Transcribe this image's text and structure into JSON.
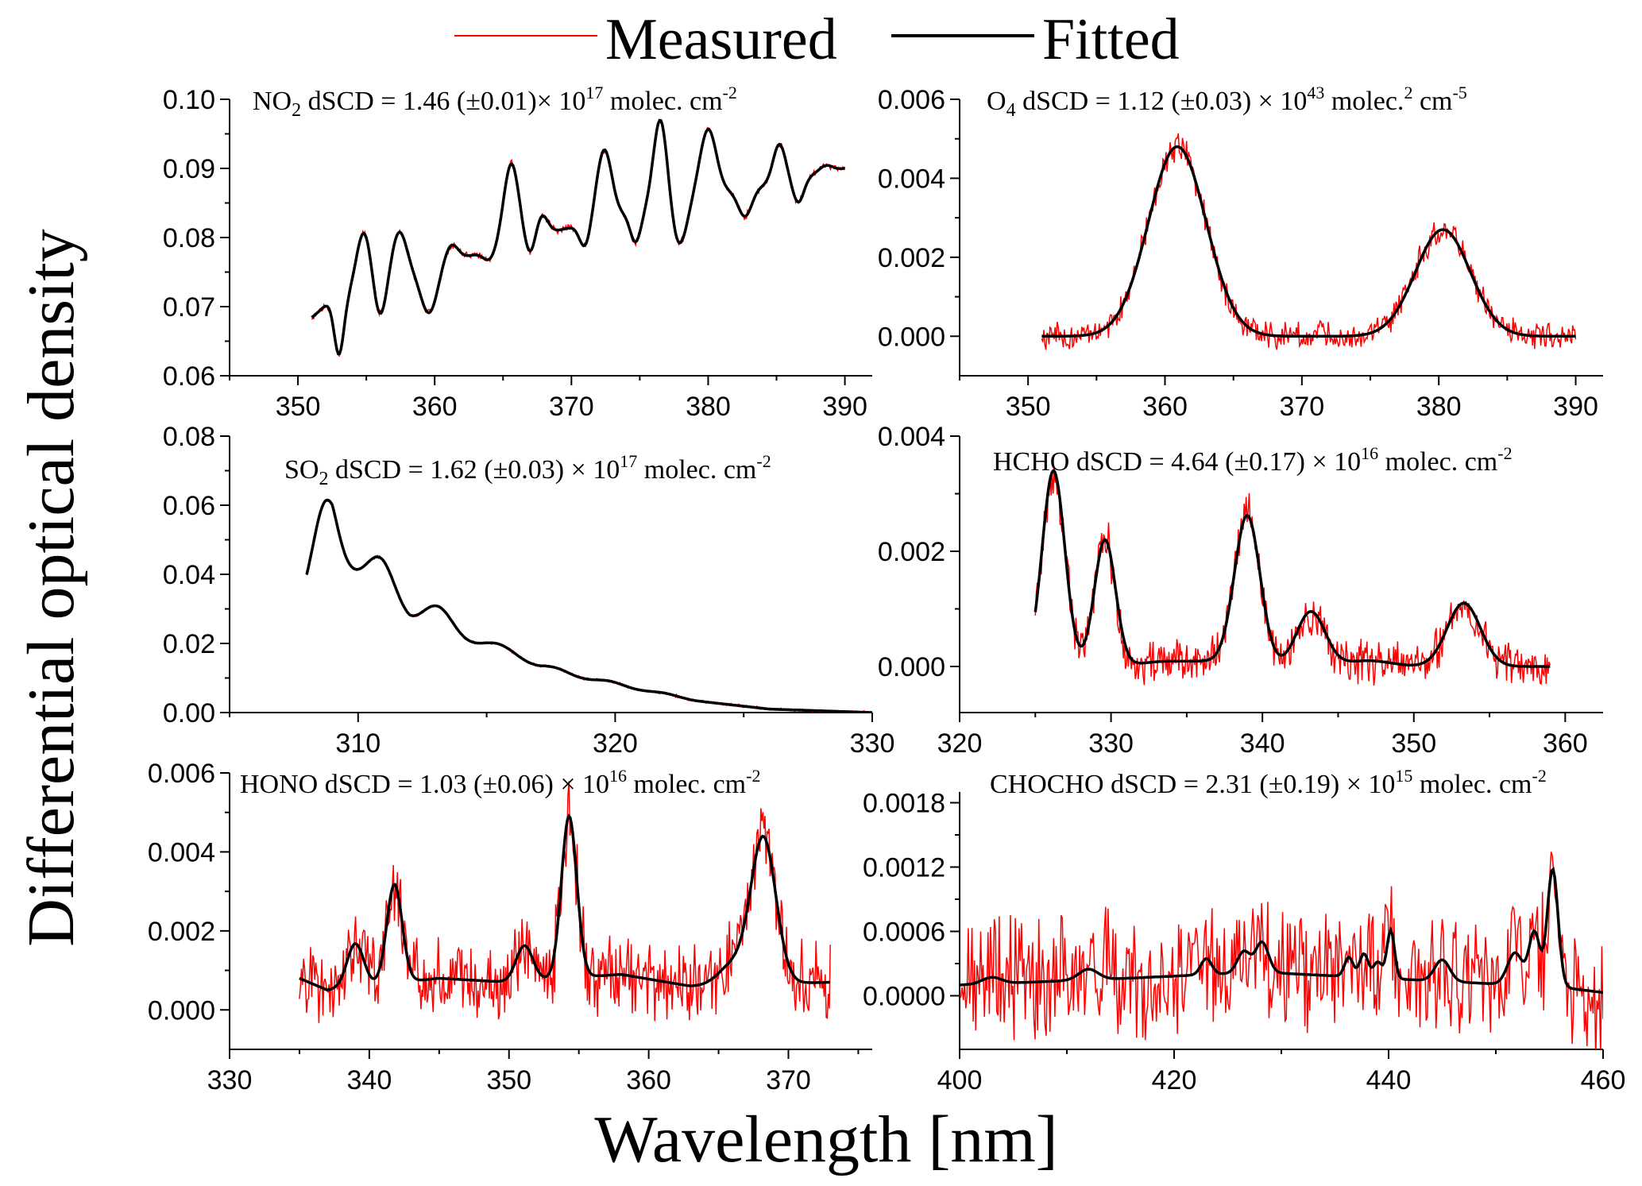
{
  "figure": {
    "legend": {
      "measured_label": "Measured",
      "fitted_label": "Fitted"
    },
    "ylabel": "Differential optical density",
    "xlabel": "Wavelength [nm]",
    "colors": {
      "measured": "#ff0000",
      "fitted": "#000000",
      "axis": "#000000"
    }
  },
  "chart_data": [
    {
      "id": "no2",
      "type": "line",
      "title": {
        "species": "NO",
        "sub": "2",
        "text": " dSCD = 1.46 (±0.01)× 10",
        "exp": "17",
        "tail": " molec. cm",
        "tail_sup": "-2"
      },
      "xlim": [
        345,
        392
      ],
      "ylim": [
        0.06,
        0.1
      ],
      "xticks": [
        350,
        360,
        370,
        380,
        390
      ],
      "yticks": [
        0.06,
        0.07,
        0.08,
        0.09,
        0.1
      ],
      "ytick_labels": [
        "0.06",
        "0.07",
        "0.08",
        "0.09",
        "0.10"
      ],
      "x_range": [
        351,
        390
      ],
      "baseline": [
        [
          351,
          0.0683
        ],
        [
          356,
          0.0735
        ],
        [
          362,
          0.077
        ],
        [
          367,
          0.08
        ],
        [
          372,
          0.0825
        ],
        [
          378,
          0.0855
        ],
        [
          384,
          0.0875
        ],
        [
          390,
          0.09
        ]
      ],
      "peaks": [
        [
          352.4,
          0.001,
          0.7
        ],
        [
          353.0,
          -0.008,
          0.35
        ],
        [
          354.8,
          0.0085,
          0.55
        ],
        [
          356.0,
          -0.0055,
          0.45
        ],
        [
          357.4,
          0.0065,
          0.55
        ],
        [
          359.6,
          -0.0065,
          0.6
        ],
        [
          361.2,
          0.0025,
          0.5
        ],
        [
          364.0,
          -0.0015,
          0.45
        ],
        [
          365.6,
          0.0115,
          0.55
        ],
        [
          367.0,
          -0.003,
          0.4
        ],
        [
          367.8,
          0.003,
          0.45
        ],
        [
          371.0,
          -0.0035,
          0.4
        ],
        [
          372.4,
          0.01,
          0.55
        ],
        [
          374.7,
          -0.0045,
          0.4
        ],
        [
          376.5,
          0.0125,
          0.5
        ],
        [
          377.9,
          -0.0065,
          0.55
        ],
        [
          380.0,
          0.0095,
          0.6
        ],
        [
          382.7,
          -0.004,
          0.5
        ],
        [
          385.2,
          0.0055,
          0.45
        ],
        [
          386.6,
          -0.0035,
          0.4
        ],
        [
          388.6,
          0.001,
          0.5
        ]
      ],
      "noise": 0.0004
    },
    {
      "id": "o4",
      "type": "line",
      "title": {
        "species": "O",
        "sub": "4",
        "text": " dSCD = 1.12 (±0.03) × 10",
        "exp": "43",
        "tail": " molec.",
        "tail_sup": "2",
        "tail2": " cm",
        "tail2_sup": "-5"
      },
      "xlim": [
        345,
        392
      ],
      "ylim": [
        -0.001,
        0.006
      ],
      "xticks": [
        350,
        360,
        370,
        380,
        390
      ],
      "yticks": [
        0.0,
        0.002,
        0.004,
        0.006
      ],
      "ytick_labels": [
        "0.000",
        "0.002",
        "0.004",
        "0.006"
      ],
      "x_range": [
        351,
        390
      ],
      "baseline": [
        [
          351,
          0.0
        ],
        [
          390,
          0.0
        ]
      ],
      "peaks": [
        [
          360.9,
          0.0048,
          2.1
        ],
        [
          380.3,
          0.0027,
          2.0
        ]
      ],
      "noise": 0.00028
    },
    {
      "id": "so2",
      "type": "line",
      "title": {
        "species": "SO",
        "sub": "2",
        "text": " dSCD = 1.62 (±0.03) × 10",
        "exp": "17",
        "tail": " molec. cm",
        "tail_sup": "-2"
      },
      "xlim": [
        305,
        330
      ],
      "ylim": [
        0.0,
        0.08
      ],
      "xticks": [
        310,
        320,
        330
      ],
      "yticks": [
        0.0,
        0.02,
        0.04,
        0.06,
        0.08
      ],
      "ytick_labels": [
        "0.00",
        "0.02",
        "0.04",
        "0.06",
        "0.08"
      ],
      "x_range": [
        308,
        330
      ],
      "baseline": [
        [
          308,
          0.034
        ],
        [
          309,
          0.044
        ],
        [
          310,
          0.038
        ],
        [
          311,
          0.032
        ],
        [
          312,
          0.025
        ],
        [
          313,
          0.022
        ],
        [
          315,
          0.017
        ],
        [
          317,
          0.012
        ],
        [
          320,
          0.0075
        ],
        [
          323,
          0.0035
        ],
        [
          326,
          0.001
        ],
        [
          330,
          0.0
        ]
      ],
      "peaks": [
        [
          308.7,
          0.02,
          0.45
        ],
        [
          310.9,
          0.012,
          0.55
        ],
        [
          313.1,
          0.009,
          0.6
        ],
        [
          315.5,
          0.004,
          0.7
        ],
        [
          317.6,
          0.002,
          0.6
        ],
        [
          319.8,
          0.0013,
          0.55
        ],
        [
          321.9,
          0.0007,
          0.55
        ]
      ],
      "noise": 0.0003
    },
    {
      "id": "hcho",
      "type": "line",
      "title": {
        "species": "HCHO",
        "sub": "",
        "text": " dSCD = 4.64 (±0.17) × 10",
        "exp": "16",
        "tail": " molec. cm",
        "tail_sup": "-2"
      },
      "xlim": [
        320,
        362.5
      ],
      "ylim": [
        -0.0008,
        0.004
      ],
      "xticks": [
        320,
        330,
        340,
        350,
        360
      ],
      "yticks": [
        0.0,
        0.002,
        0.004
      ],
      "ytick_labels": [
        "0.000",
        "0.002",
        "0.004"
      ],
      "x_range": [
        325,
        359
      ],
      "baseline": [
        [
          325,
          0.0
        ],
        [
          359,
          0.0
        ]
      ],
      "peaks": [
        [
          326.2,
          0.0034,
          0.75
        ],
        [
          329.6,
          0.0022,
          0.7
        ],
        [
          333.4,
          8e-05,
          1.5
        ],
        [
          336.6,
          8e-05,
          1.5
        ],
        [
          339.0,
          0.0026,
          0.85
        ],
        [
          343.2,
          0.00095,
          0.95
        ],
        [
          347.0,
          0.0001,
          1.5
        ],
        [
          353.3,
          0.0011,
          1.1
        ]
      ],
      "noise": 0.0003
    },
    {
      "id": "hono",
      "type": "line",
      "title": {
        "species": "HONO",
        "sub": "",
        "text": " dSCD = 1.03 (±0.06) × 10",
        "exp": "16",
        "tail": " molec. cm",
        "tail_sup": "-2"
      },
      "xlim": [
        330,
        376
      ],
      "ylim": [
        -0.001,
        0.006
      ],
      "xticks": [
        330,
        340,
        350,
        360,
        370
      ],
      "yticks": [
        0.0,
        0.002,
        0.004,
        0.006
      ],
      "ytick_labels": [
        "0.000",
        "0.002",
        "0.004",
        "0.006"
      ],
      "x_range": [
        335,
        373
      ],
      "baseline": [
        [
          335,
          0.0008
        ],
        [
          337,
          0.0005
        ],
        [
          345,
          0.0008
        ],
        [
          350,
          0.0007
        ],
        [
          358,
          0.0009
        ],
        [
          363,
          0.0006
        ],
        [
          373,
          0.0007
        ]
      ],
      "peaks": [
        [
          339.0,
          0.0011,
          0.6
        ],
        [
          341.8,
          0.0025,
          0.55
        ],
        [
          351.1,
          0.0009,
          0.6
        ],
        [
          354.3,
          0.0041,
          0.55
        ],
        [
          368.2,
          0.0037,
          0.9
        ],
        [
          366.0,
          0.0005,
          1.0
        ]
      ],
      "noise": 0.00075
    },
    {
      "id": "chocho",
      "type": "line",
      "title": {
        "species": "CHOCHO",
        "sub": "",
        "text": " dSCD = 2.31 (±0.19) × 10",
        "exp": "15",
        "tail": " molec. cm",
        "tail_sup": "-2"
      },
      "xlim": [
        400,
        460
      ],
      "ylim": [
        -0.0005,
        0.0019
      ],
      "xticks": [
        400,
        420,
        440,
        460
      ],
      "yticks": [
        0.0,
        0.0006,
        0.0012,
        0.0018
      ],
      "ytick_labels": [
        "0.0000",
        "0.0006",
        "0.0012",
        "0.0018"
      ],
      "x_range": [
        400,
        460
      ],
      "baseline": [
        [
          400,
          0.0001
        ],
        [
          415,
          0.00016
        ],
        [
          428,
          0.00022
        ],
        [
          438,
          0.00017
        ],
        [
          448,
          0.00012
        ],
        [
          456,
          8e-05
        ],
        [
          460,
          3e-05
        ]
      ],
      "peaks": [
        [
          403.0,
          6e-05,
          0.9
        ],
        [
          412.0,
          0.0001,
          0.9
        ],
        [
          423.0,
          0.00015,
          0.5
        ],
        [
          426.5,
          0.0002,
          0.6
        ],
        [
          428.2,
          0.00028,
          0.6
        ],
        [
          436.3,
          0.00018,
          0.4
        ],
        [
          437.7,
          0.00022,
          0.4
        ],
        [
          439.0,
          0.00015,
          0.4
        ],
        [
          440.2,
          0.00045,
          0.35
        ],
        [
          445.0,
          0.0002,
          0.7
        ],
        [
          451.8,
          0.0003,
          0.7
        ],
        [
          453.6,
          0.0005,
          0.5
        ],
        [
          455.3,
          0.0011,
          0.5
        ]
      ],
      "noise": 0.00045
    }
  ]
}
